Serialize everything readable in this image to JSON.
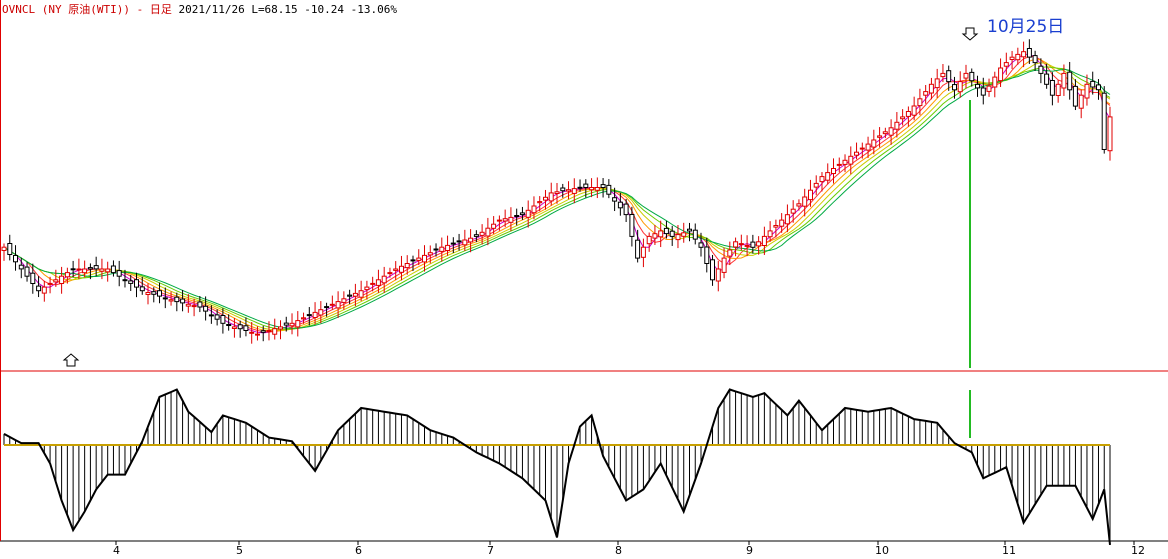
{
  "header": {
    "symbol_label": "OVNCL (NY 原油(WTI)) - 日足",
    "info_label": "2021/11/26 L=68.15 -10.24 -13.06%"
  },
  "annotation": {
    "label": "10月25日"
  },
  "colors": {
    "up_candle": "#e00000",
    "down_candle": "#000000",
    "marker_line": "#22bb22",
    "zero_line": "#c8a000",
    "ma_ribbon": [
      "#cc00cc",
      "#ff3333",
      "#ff9900",
      "#cccc00",
      "#66cc00",
      "#00aa44"
    ]
  },
  "chart_data": {
    "type": "candlestick",
    "title": "OVNCL (NY 原油(WTI)) - 日足",
    "x_tick_labels": [
      "4",
      "5",
      "6",
      "7",
      "8",
      "9",
      "10",
      "11",
      "12"
    ],
    "legend": "none",
    "grid": false,
    "series": [
      {
        "name": "",
        "kind": "price",
        "path": [
          [
            0,
            66.0
          ],
          [
            6,
            62.0
          ],
          [
            12,
            64.0
          ],
          [
            18,
            64.0
          ],
          [
            24,
            62.0
          ],
          [
            30,
            61.0
          ],
          [
            34,
            60.5
          ],
          [
            38,
            59.0
          ],
          [
            44,
            58.0
          ],
          [
            50,
            59.0
          ],
          [
            56,
            60.5
          ],
          [
            62,
            62.0
          ],
          [
            68,
            64.0
          ],
          [
            76,
            66.0
          ],
          [
            82,
            67.0
          ],
          [
            86,
            68.5
          ],
          [
            90,
            69.0
          ],
          [
            95,
            71.0
          ],
          [
            100,
            71.5
          ],
          [
            104,
            71.5
          ],
          [
            108,
            69.0
          ],
          [
            110,
            65.0
          ],
          [
            112,
            67.0
          ],
          [
            114,
            67.5
          ],
          [
            116,
            67.0
          ],
          [
            119,
            67.5
          ],
          [
            121,
            66.0
          ],
          [
            123,
            63.0
          ],
          [
            125,
            65.0
          ],
          [
            127,
            66.5
          ],
          [
            130,
            66.0
          ],
          [
            134,
            68.0
          ],
          [
            138,
            70.0
          ],
          [
            142,
            72.5
          ],
          [
            146,
            74.0
          ],
          [
            150,
            75.5
          ],
          [
            154,
            77.0
          ],
          [
            158,
            79.0
          ],
          [
            161,
            81.0
          ],
          [
            163,
            82.0
          ],
          [
            165,
            80.5
          ],
          [
            167,
            82.0
          ],
          [
            170,
            80.0
          ],
          [
            173,
            82.5
          ],
          [
            175,
            83.5
          ],
          [
            177,
            84.0
          ],
          [
            179,
            83.0
          ],
          [
            182,
            80.0
          ],
          [
            184,
            82.0
          ],
          [
            186,
            79.0
          ],
          [
            188,
            81.0
          ],
          [
            190,
            80.5
          ],
          [
            191,
            75.0
          ],
          [
            192,
            78.0
          ],
          [
            194,
            76.0
          ]
        ]
      },
      {
        "name": "",
        "kind": "oscillator",
        "path": [
          [
            0,
            0.3
          ],
          [
            3,
            0.05
          ],
          [
            6,
            0.05
          ],
          [
            8,
            -0.5
          ],
          [
            10,
            -1.5
          ],
          [
            12,
            -2.3
          ],
          [
            14,
            -1.8
          ],
          [
            16,
            -1.2
          ],
          [
            18,
            -0.8
          ],
          [
            21,
            -0.8
          ],
          [
            24,
            0.1
          ],
          [
            27,
            1.3
          ],
          [
            30,
            1.5
          ],
          [
            32,
            0.9
          ],
          [
            36,
            0.35
          ],
          [
            38,
            0.8
          ],
          [
            42,
            0.6
          ],
          [
            46,
            0.2
          ],
          [
            50,
            0.1
          ],
          [
            54,
            -0.7
          ],
          [
            58,
            0.4
          ],
          [
            62,
            1.0
          ],
          [
            66,
            0.9
          ],
          [
            70,
            0.8
          ],
          [
            74,
            0.4
          ],
          [
            78,
            0.2
          ],
          [
            82,
            -0.2
          ],
          [
            86,
            -0.5
          ],
          [
            90,
            -0.9
          ],
          [
            94,
            -1.5
          ],
          [
            96,
            -2.5
          ],
          [
            98,
            -0.5
          ],
          [
            100,
            0.5
          ],
          [
            102,
            0.8
          ],
          [
            104,
            -0.3
          ],
          [
            108,
            -1.5
          ],
          [
            111,
            -1.2
          ],
          [
            114,
            -0.5
          ],
          [
            118,
            -1.8
          ],
          [
            121,
            -0.5
          ],
          [
            124,
            1.0
          ],
          [
            126,
            1.5
          ],
          [
            130,
            1.3
          ],
          [
            132,
            1.4
          ],
          [
            136,
            0.8
          ],
          [
            138,
            1.2
          ],
          [
            142,
            0.4
          ],
          [
            146,
            1.0
          ],
          [
            150,
            0.9
          ],
          [
            154,
            1.0
          ],
          [
            158,
            0.7
          ],
          [
            162,
            0.6
          ],
          [
            165,
            0.05
          ],
          [
            168,
            -0.2
          ],
          [
            170,
            -0.9
          ],
          [
            174,
            -0.6
          ],
          [
            177,
            -2.1
          ],
          [
            181,
            -1.1
          ],
          [
            186,
            -1.1
          ],
          [
            189,
            -2.0
          ],
          [
            191,
            -1.2
          ],
          [
            192,
            -2.7
          ]
        ]
      }
    ]
  }
}
